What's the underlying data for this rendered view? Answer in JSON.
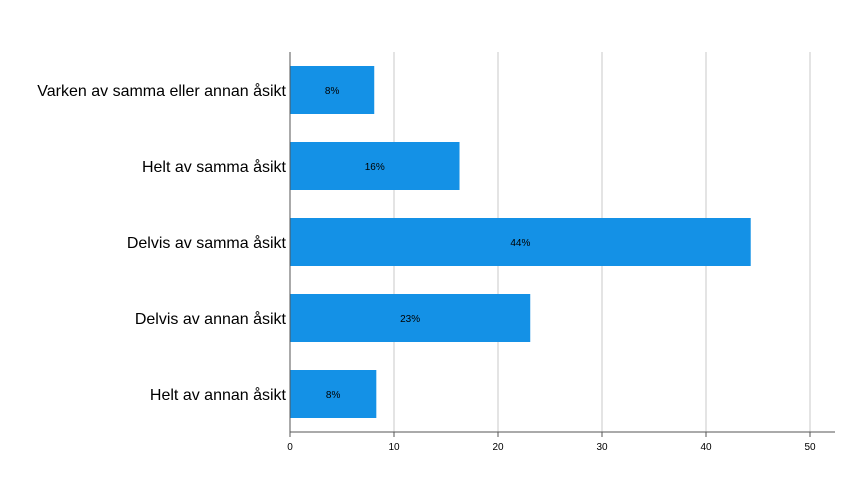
{
  "chart_data": {
    "type": "bar",
    "orientation": "horizontal",
    "categories": [
      "Varken av samma eller annan åsikt",
      "Helt av samma åsikt",
      "Delvis av samma åsikt",
      "Delvis av annan åsikt",
      "Helt av annan åsikt"
    ],
    "values": [
      8.1,
      16.3,
      44.3,
      23.1,
      8.3
    ],
    "data_labels": [
      "8%",
      "16%",
      "44%",
      "23%",
      "8%"
    ],
    "xlim": [
      0,
      52.5
    ],
    "xticks": [
      0,
      10,
      20,
      30,
      40,
      50
    ],
    "xtick_labels": [
      "0",
      "10",
      "20",
      "30",
      "40",
      "50"
    ],
    "grid": "vertical",
    "bar_color": "#1491e6",
    "grid_color": "#c8c8c8",
    "axis_color": "#555555"
  }
}
